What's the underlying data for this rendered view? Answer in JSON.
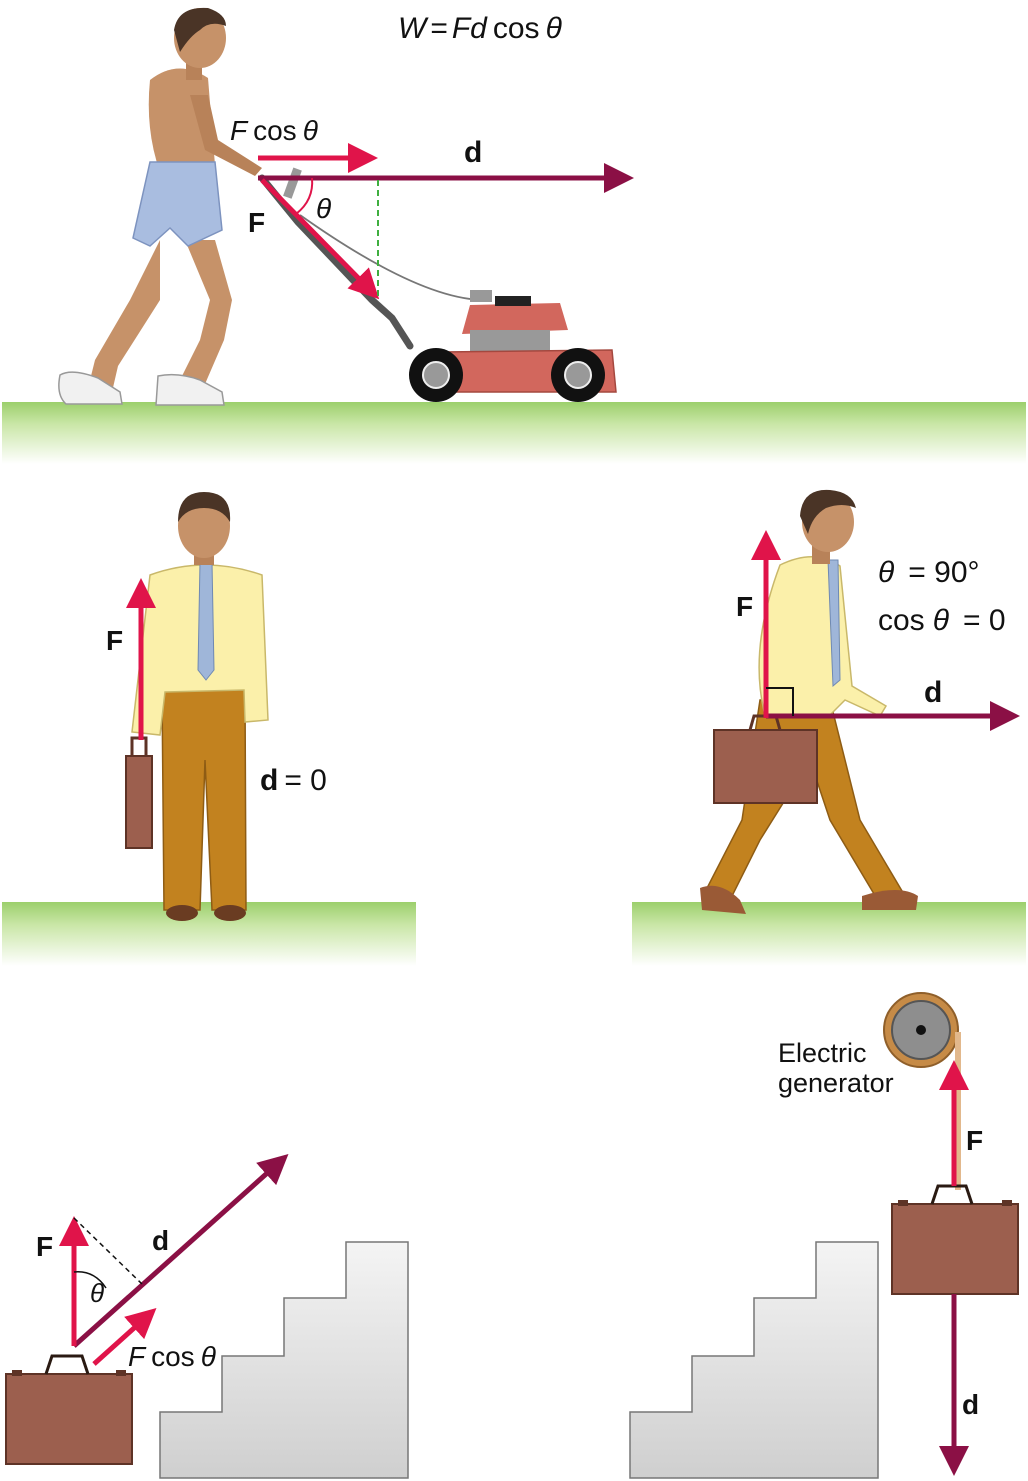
{
  "formula": {
    "W": "W",
    "eq": "=",
    "Fd": "Fd",
    "cos": "cos",
    "theta": "θ"
  },
  "panel_a": {
    "Fcos_F": "F",
    "Fcos_cos": "cos",
    "Fcos_theta": "θ",
    "d_label": "d",
    "F_label": "F",
    "theta_label": "θ"
  },
  "panel_b": {
    "F_label": "F",
    "d_label": "d",
    "d_value": "= 0"
  },
  "panel_c": {
    "F_label": "F",
    "d_label": "d",
    "theta_line_theta": "θ",
    "theta_line_value": "= 90°",
    "cos_line_cos": "cos",
    "cos_line_theta": "θ",
    "cos_line_value": "= 0"
  },
  "panel_d": {
    "F_label": "F",
    "d_label": "d",
    "theta_label": "θ",
    "Fcos_F": "F",
    "Fcos_cos": "cos",
    "Fcos_theta": "θ"
  },
  "panel_e": {
    "generator_line1": "Electric",
    "generator_line2": "generator",
    "F_label": "F",
    "d_label": "d"
  },
  "colors": {
    "force_arrow": "#e0144a",
    "displacement_arrow": "#8b1045",
    "ground_top": "#a7d37a",
    "briefcase": "#9c5f4e",
    "stairs": "#e3e3e3"
  }
}
